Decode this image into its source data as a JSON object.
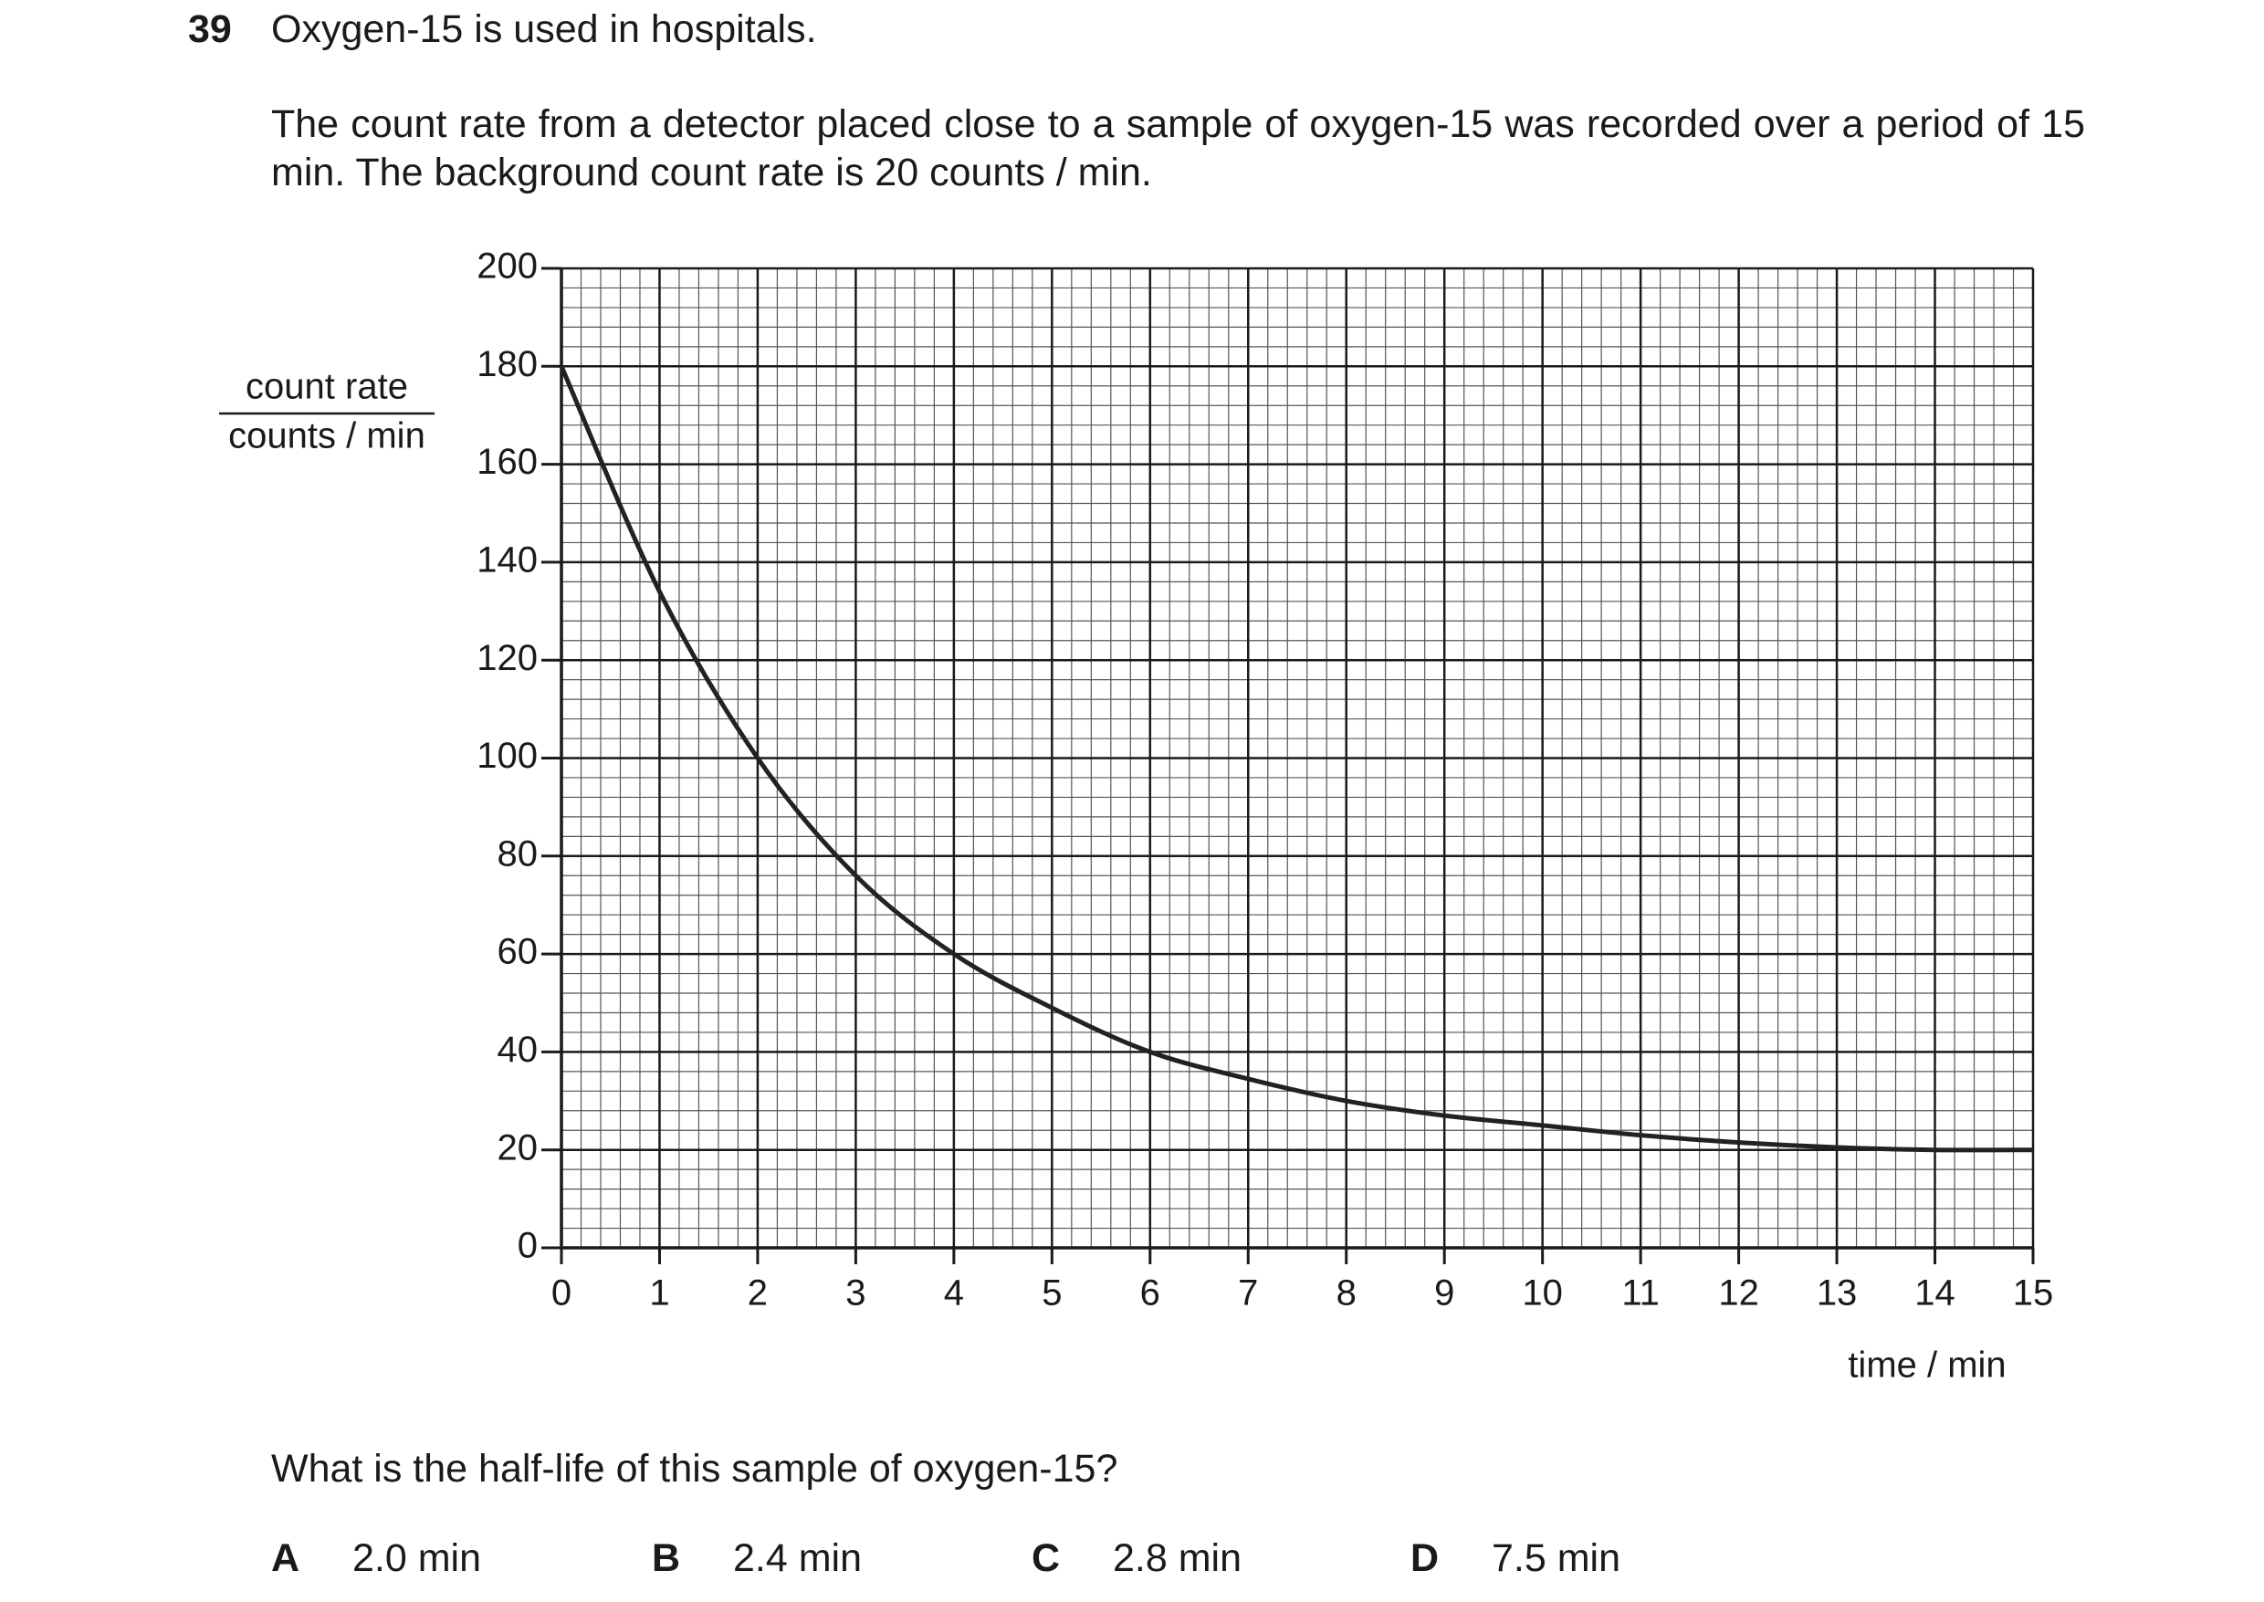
{
  "question": {
    "number": "39",
    "title": "Oxygen-15 is used in hospitals.",
    "text": "The count rate from a detector placed close to a sample of oxygen-15 was recorded over a period of 15 min. The background count rate is 20 counts / min.",
    "prompt": "What is the half-life of this sample of oxygen-15?",
    "options": [
      {
        "letter": "A",
        "text": "2.0 min"
      },
      {
        "letter": "B",
        "text": "2.4 min"
      },
      {
        "letter": "C",
        "text": "2.8 min"
      },
      {
        "letter": "D",
        "text": "7.5 min"
      }
    ]
  },
  "chart_data": {
    "type": "line",
    "y_label_quantity": "count rate",
    "y_label_unit": "counts / min",
    "x_label": "time / min",
    "x": [
      0,
      1,
      2,
      3,
      4,
      5,
      6,
      7,
      8,
      9,
      10,
      11,
      12,
      13,
      14,
      15
    ],
    "series": [
      {
        "name": "count rate",
        "color": "#222222",
        "values": [
          180,
          134,
          100,
          76,
          60,
          49,
          40,
          34.5,
          30,
          27,
          25,
          23,
          21.5,
          20.5,
          20,
          20
        ]
      }
    ],
    "xlim": [
      0,
      15
    ],
    "xticks": [
      0,
      1,
      2,
      3,
      4,
      5,
      6,
      7,
      8,
      9,
      10,
      11,
      12,
      13,
      14,
      15
    ],
    "ylim": [
      0,
      200
    ],
    "yticks": [
      0,
      20,
      40,
      60,
      80,
      100,
      120,
      140,
      160,
      180,
      200
    ],
    "grid": true
  }
}
